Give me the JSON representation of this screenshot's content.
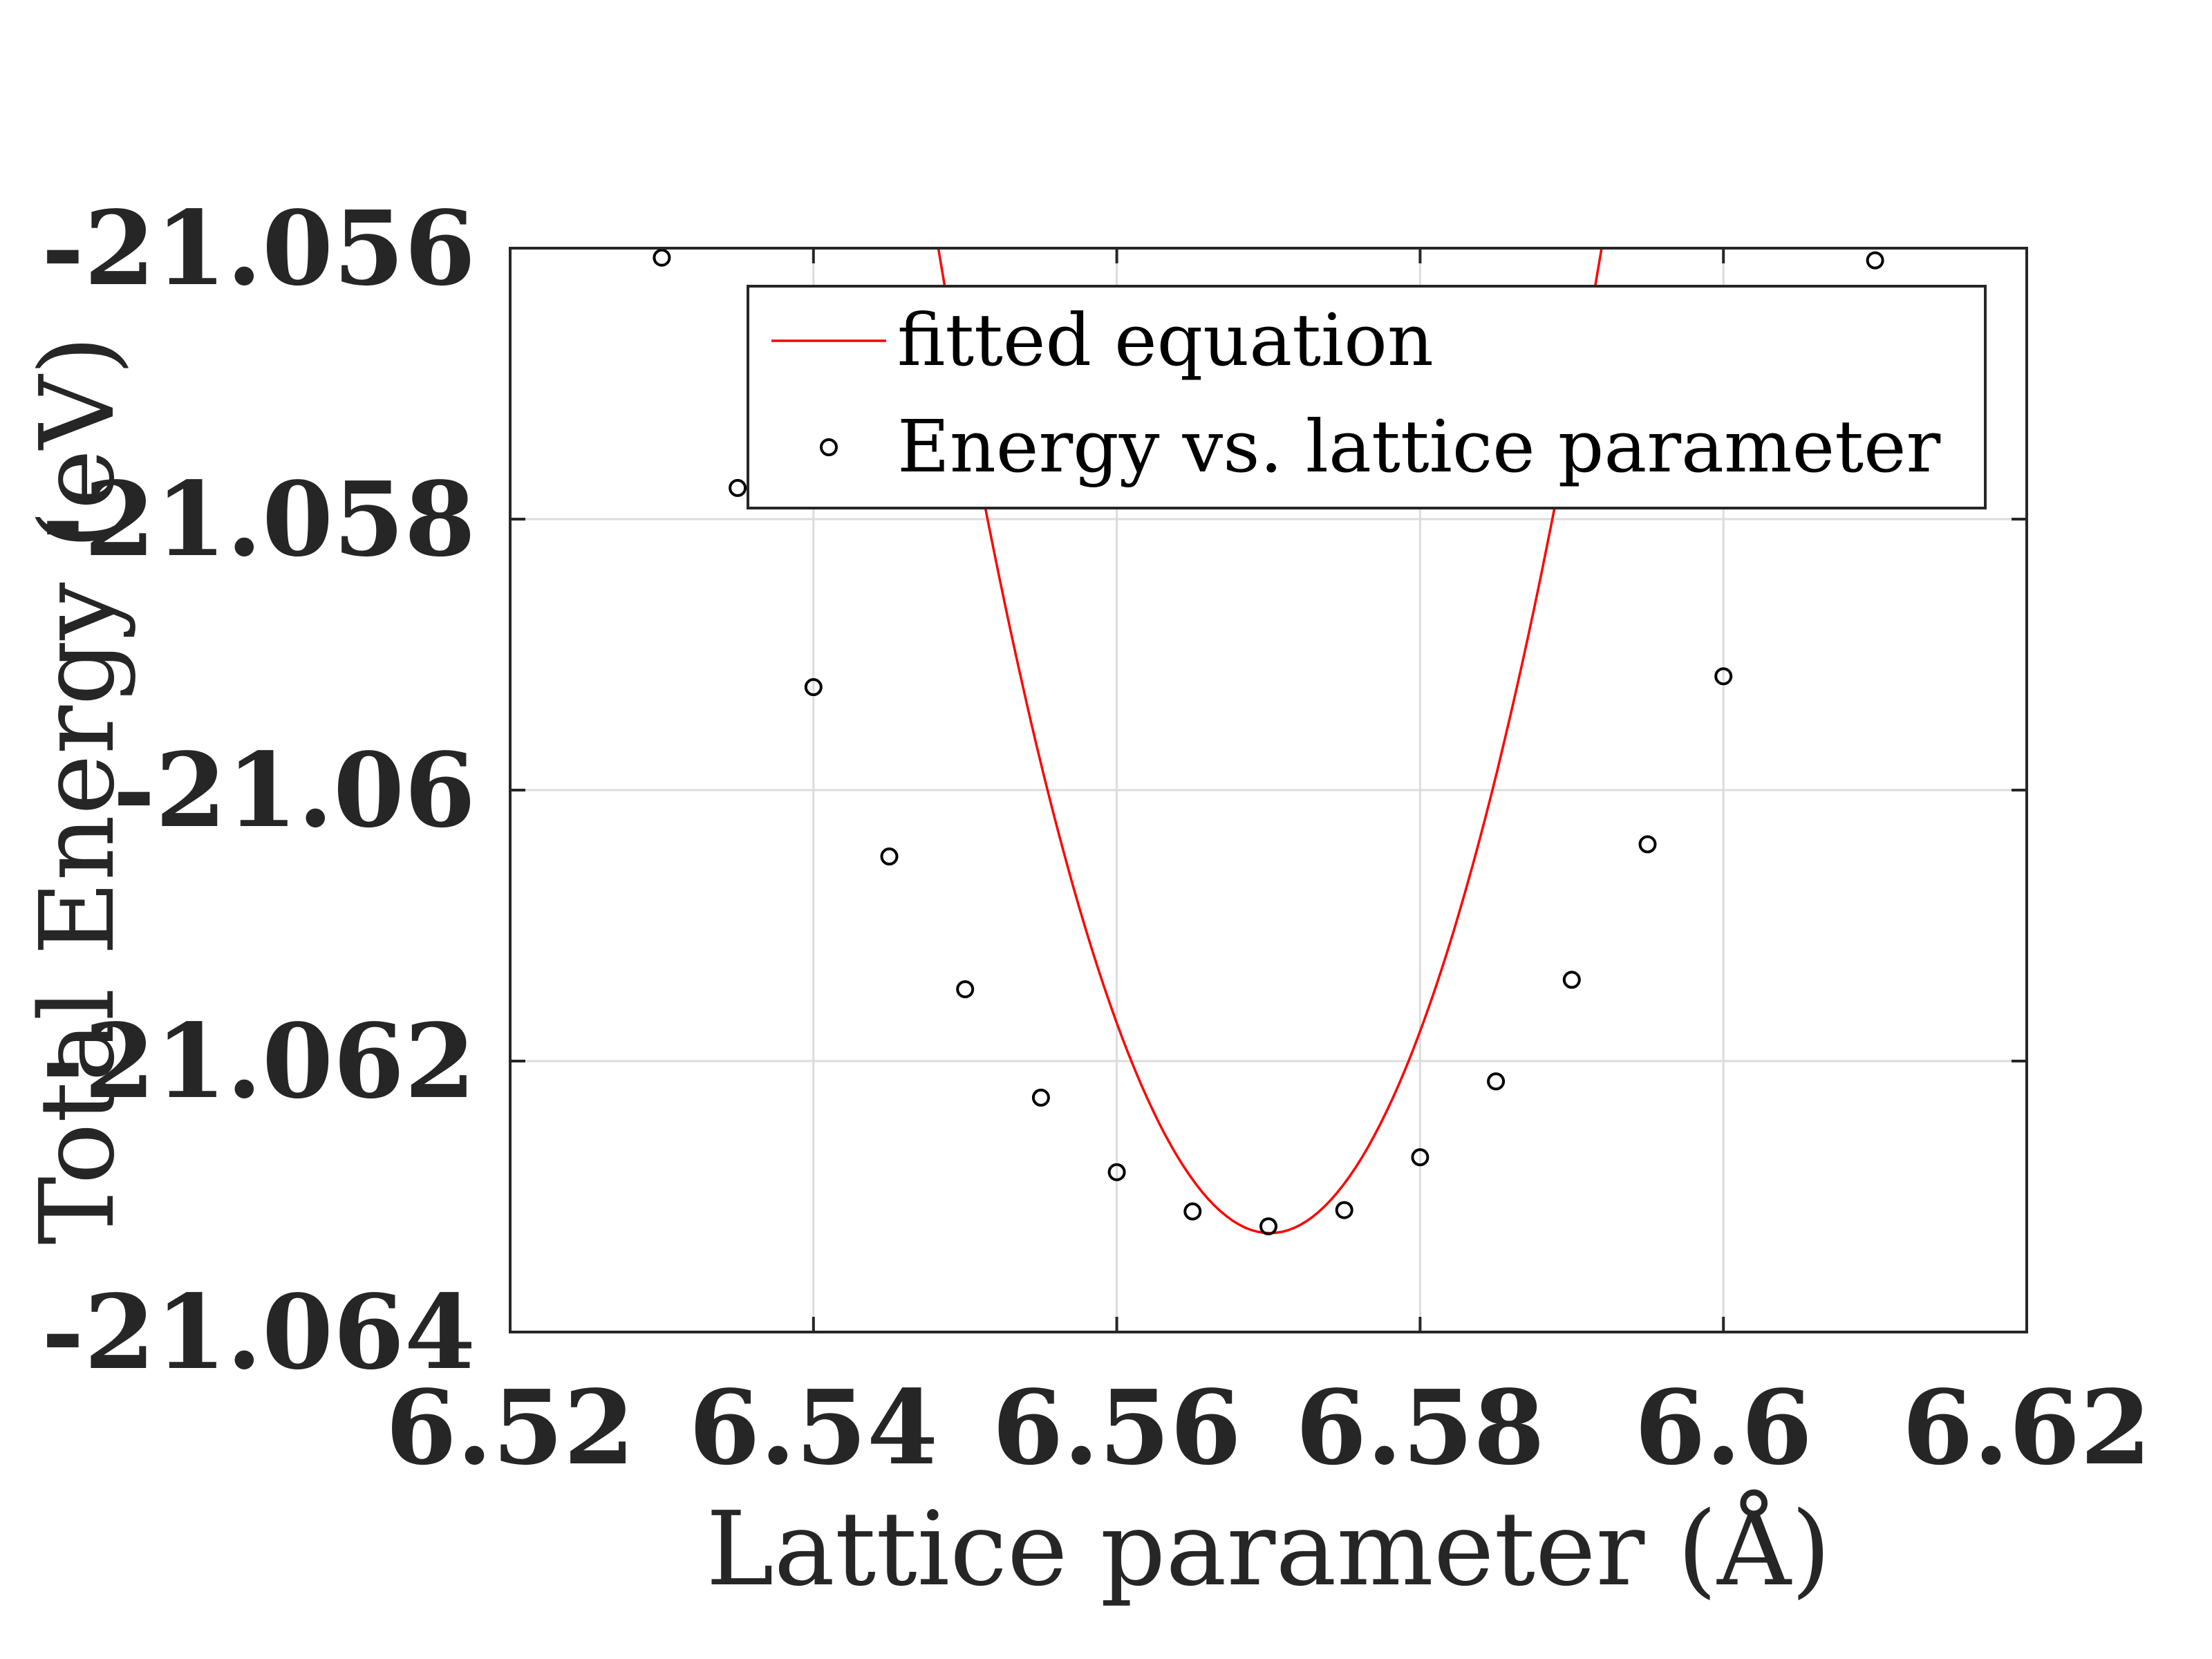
{
  "chart_data": {
    "type": "scatter",
    "xlabel": "Lattice parameter (Å)",
    "ylabel": "Total Energy (eV)",
    "xlim": [
      6.52,
      6.62
    ],
    "ylim": [
      -21.064,
      -21.056
    ],
    "x_ticks": [
      {
        "value": 6.52,
        "label": "6.52"
      },
      {
        "value": 6.54,
        "label": "6.54"
      },
      {
        "value": 6.56,
        "label": "6.56"
      },
      {
        "value": 6.58,
        "label": "6.58"
      },
      {
        "value": 6.6,
        "label": "6.6"
      },
      {
        "value": 6.62,
        "label": "6.62"
      }
    ],
    "y_ticks": [
      {
        "value": -21.056,
        "label": "-21.056"
      },
      {
        "value": -21.058,
        "label": "-21.058"
      },
      {
        "value": -21.06,
        "label": "-21.06"
      },
      {
        "value": -21.062,
        "label": "-21.062"
      },
      {
        "value": -21.064,
        "label": "-21.064"
      }
    ],
    "grid": true,
    "legend_position": "top-right",
    "series": [
      {
        "name": "fitted equation",
        "kind": "line",
        "color": "#ff0000",
        "fit_min_x": 6.5701,
        "fit_min_y": -21.06327,
        "fit_curvature": 15.2,
        "x_range": [
          6.53,
          6.611
        ]
      },
      {
        "name": "Energy vs. lattice parameter",
        "kind": "scatter",
        "color": "#000000",
        "x": [
          6.53,
          6.535,
          6.54,
          6.545,
          6.55,
          6.555,
          6.56,
          6.565,
          6.57,
          6.575,
          6.58,
          6.585,
          6.59,
          6.595,
          6.6,
          6.61
        ],
        "y": [
          -21.05607,
          -21.05777,
          -21.05924,
          -21.06049,
          -21.06147,
          -21.06227,
          -21.06282,
          -21.06311,
          -21.06322,
          -21.0631,
          -21.06271,
          -21.06215,
          -21.0614,
          -21.0604,
          -21.05916,
          -21.05609
        ]
      }
    ]
  }
}
